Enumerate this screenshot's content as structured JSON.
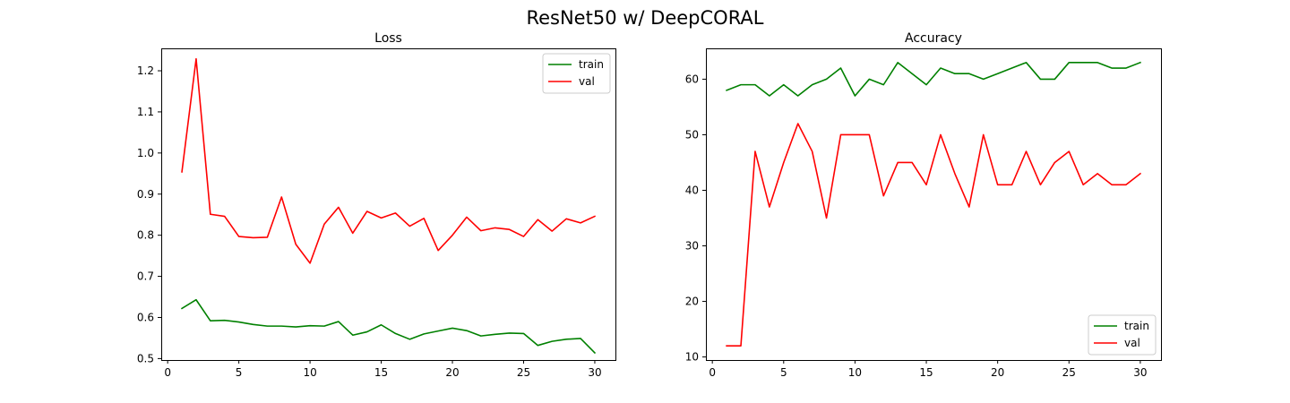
{
  "figure": {
    "suptitle": "ResNet50 w/ DeepCORAL"
  },
  "chart_data": [
    {
      "type": "line",
      "title": "Loss",
      "xlabel": "",
      "ylabel": "",
      "xlim": [
        -0.45,
        31.45
      ],
      "ylim": [
        0.4965,
        1.2545
      ],
      "xticks": [
        0,
        5,
        10,
        15,
        20,
        25,
        30
      ],
      "yticks": [
        0.5,
        0.6,
        0.7,
        0.8,
        0.9,
        1.0,
        1.1,
        1.2
      ],
      "ytick_labels": [
        "0.5",
        "0.6",
        "0.7",
        "0.8",
        "0.9",
        "1.0",
        "1.1",
        "1.2"
      ],
      "grid": false,
      "legend": "top-right",
      "x": [
        1,
        2,
        3,
        4,
        5,
        6,
        7,
        8,
        9,
        10,
        11,
        12,
        13,
        14,
        15,
        16,
        17,
        18,
        19,
        20,
        21,
        22,
        23,
        24,
        25,
        26,
        27,
        28,
        29,
        30
      ],
      "series": [
        {
          "name": "train",
          "color": "#008000",
          "values": [
            0.622,
            0.643,
            0.592,
            0.593,
            0.589,
            0.583,
            0.579,
            0.579,
            0.577,
            0.58,
            0.579,
            0.59,
            0.557,
            0.565,
            0.582,
            0.561,
            0.547,
            0.56,
            0.567,
            0.574,
            0.568,
            0.555,
            0.559,
            0.562,
            0.561,
            0.532,
            0.542,
            0.547,
            0.549,
            0.514
          ]
        },
        {
          "name": "val",
          "color": "#ff0000",
          "values": [
            0.954,
            1.229,
            0.851,
            0.846,
            0.797,
            0.794,
            0.795,
            0.893,
            0.778,
            0.732,
            0.827,
            0.868,
            0.805,
            0.858,
            0.842,
            0.854,
            0.822,
            0.841,
            0.763,
            0.8,
            0.844,
            0.811,
            0.818,
            0.814,
            0.797,
            0.838,
            0.81,
            0.84,
            0.83,
            0.846
          ]
        }
      ]
    },
    {
      "type": "line",
      "title": "Accuracy",
      "xlabel": "",
      "ylabel": "",
      "xlim": [
        -0.45,
        31.45
      ],
      "ylim": [
        9.45,
        65.55
      ],
      "xticks": [
        0,
        5,
        10,
        15,
        20,
        25,
        30
      ],
      "yticks": [
        10,
        20,
        30,
        40,
        50,
        60
      ],
      "ytick_labels": [
        "10",
        "20",
        "30",
        "40",
        "50",
        "60"
      ],
      "grid": false,
      "legend": "bottom-right",
      "x": [
        1,
        2,
        3,
        4,
        5,
        6,
        7,
        8,
        9,
        10,
        11,
        12,
        13,
        14,
        15,
        16,
        17,
        18,
        19,
        20,
        21,
        22,
        23,
        24,
        25,
        26,
        27,
        28,
        29,
        30
      ],
      "series": [
        {
          "name": "train",
          "color": "#008000",
          "values": [
            58,
            59,
            59,
            57,
            59,
            57,
            59,
            60,
            62,
            57,
            60,
            59,
            63,
            61,
            59,
            62,
            61,
            61,
            60,
            61,
            62,
            63,
            60,
            60,
            63,
            63,
            63,
            62,
            62,
            63
          ]
        },
        {
          "name": "val",
          "color": "#ff0000",
          "values": [
            12,
            12,
            47,
            37,
            45,
            52,
            47,
            35,
            50,
            50,
            50,
            39,
            45,
            45,
            41,
            50,
            43,
            37,
            50,
            41,
            41,
            47,
            41,
            45,
            47,
            41,
            43,
            41,
            41,
            43
          ]
        }
      ]
    }
  ]
}
